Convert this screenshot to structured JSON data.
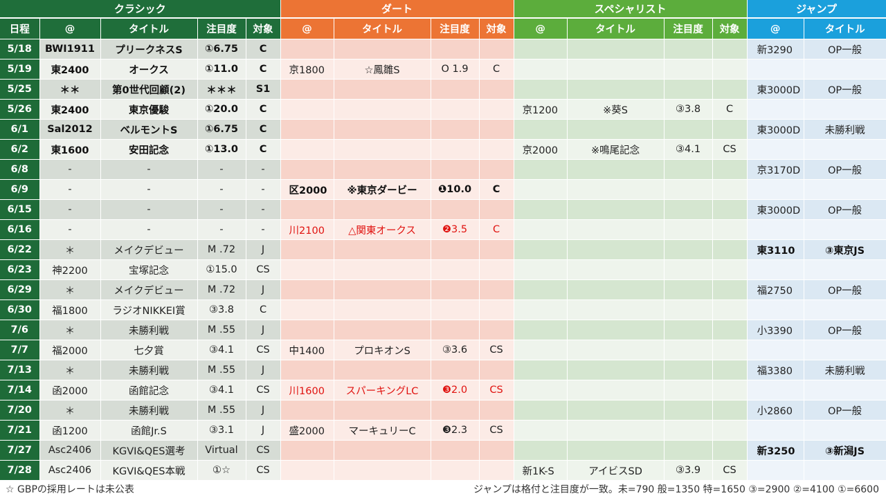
{
  "groups": {
    "classic": "クラシック",
    "dirt": "ダート",
    "specialist": "スペシャリスト",
    "jump": "ジャンプ"
  },
  "headers": {
    "date": "日程",
    "classic": [
      "@",
      "タイトル",
      "注目度",
      "対象"
    ],
    "dirt": [
      "@",
      "タイトル",
      "注目度",
      "対象"
    ],
    "specialist": [
      "@",
      "タイトル",
      "注目度",
      "対象"
    ],
    "jump": [
      "@",
      "タイトル"
    ]
  },
  "rows": [
    {
      "date": "5/18",
      "classic": [
        "BWI1911",
        "プリークネスS",
        "①6.75",
        "C"
      ],
      "classic_bold": true,
      "dirt": [
        "",
        "",
        "",
        ""
      ],
      "specialist": [
        "",
        "",
        "",
        ""
      ],
      "jump": [
        "新3290",
        "OP一般"
      ]
    },
    {
      "date": "5/19",
      "classic": [
        "東2400",
        "オークス",
        "①11.0",
        "C"
      ],
      "classic_bold": true,
      "dirt": [
        "京1800",
        "☆鳳雛S",
        "O 1.9",
        "C"
      ],
      "specialist": [
        "",
        "",
        "",
        ""
      ],
      "jump": [
        "",
        ""
      ]
    },
    {
      "date": "5/25",
      "classic": [
        "＊＊",
        "第0世代回顧(2)",
        "＊＊＊",
        "S1"
      ],
      "classic_bold": true,
      "dirt": [
        "",
        "",
        "",
        ""
      ],
      "specialist": [
        "",
        "",
        "",
        ""
      ],
      "jump": [
        "東3000D",
        "OP一般"
      ]
    },
    {
      "date": "5/26",
      "classic": [
        "東2400",
        "東京優駿",
        "①20.0",
        "C"
      ],
      "classic_bold": true,
      "dirt": [
        "",
        "",
        "",
        ""
      ],
      "specialist": [
        "京1200",
        "※葵S",
        "③3.8",
        "C"
      ],
      "jump": [
        "",
        ""
      ]
    },
    {
      "date": "6/1",
      "classic": [
        "Sal2012",
        "ベルモントS",
        "①6.75",
        "C"
      ],
      "classic_bold": true,
      "dirt": [
        "",
        "",
        "",
        ""
      ],
      "specialist": [
        "",
        "",
        "",
        ""
      ],
      "jump": [
        "東3000D",
        "未勝利戦"
      ]
    },
    {
      "date": "6/2",
      "classic": [
        "東1600",
        "安田記念",
        "①13.0",
        "C"
      ],
      "classic_bold": true,
      "dirt": [
        "",
        "",
        "",
        ""
      ],
      "specialist": [
        "京2000",
        "※鳴尾記念",
        "③4.1",
        "CS"
      ],
      "jump": [
        "",
        ""
      ]
    },
    {
      "date": "6/8",
      "classic": [
        "-",
        "-",
        "-",
        "-"
      ],
      "dirt": [
        "",
        "",
        "",
        ""
      ],
      "specialist": [
        "",
        "",
        "",
        ""
      ],
      "jump": [
        "京3170D",
        "OP一般"
      ]
    },
    {
      "date": "6/9",
      "classic": [
        "-",
        "-",
        "-",
        "-"
      ],
      "dirt": [
        "区2000",
        "※東京ダービー",
        "❶10.0",
        "C"
      ],
      "dirt_bold": true,
      "specialist": [
        "",
        "",
        "",
        ""
      ],
      "jump": [
        "",
        ""
      ]
    },
    {
      "date": "6/15",
      "classic": [
        "-",
        "-",
        "-",
        "-"
      ],
      "dirt": [
        "",
        "",
        "",
        ""
      ],
      "specialist": [
        "",
        "",
        "",
        ""
      ],
      "jump": [
        "東3000D",
        "OP一般"
      ]
    },
    {
      "date": "6/16",
      "classic": [
        "-",
        "-",
        "-",
        "-"
      ],
      "dirt": [
        "川2100",
        "△関東オークス",
        "❷3.5",
        "C"
      ],
      "dirt_red": true,
      "specialist": [
        "",
        "",
        "",
        ""
      ],
      "jump": [
        "",
        ""
      ]
    },
    {
      "date": "6/22",
      "classic": [
        "＊",
        "メイクデビュー",
        "M .72",
        "J"
      ],
      "dirt": [
        "",
        "",
        "",
        ""
      ],
      "specialist": [
        "",
        "",
        "",
        ""
      ],
      "jump": [
        "東3110",
        "③東京JS"
      ],
      "jump_bold": true
    },
    {
      "date": "6/23",
      "classic": [
        "神2200",
        "宝塚記念",
        "①15.0",
        "CS"
      ],
      "dirt": [
        "",
        "",
        "",
        ""
      ],
      "specialist": [
        "",
        "",
        "",
        ""
      ],
      "jump": [
        "",
        ""
      ]
    },
    {
      "date": "6/29",
      "classic": [
        "＊",
        "メイクデビュー",
        "M .72",
        "J"
      ],
      "dirt": [
        "",
        "",
        "",
        ""
      ],
      "specialist": [
        "",
        "",
        "",
        ""
      ],
      "jump": [
        "福2750",
        "OP一般"
      ]
    },
    {
      "date": "6/30",
      "classic": [
        "福1800",
        "ラジオNIKKEI賞",
        "③3.8",
        "C"
      ],
      "dirt": [
        "",
        "",
        "",
        ""
      ],
      "specialist": [
        "",
        "",
        "",
        ""
      ],
      "jump": [
        "",
        ""
      ]
    },
    {
      "date": "7/6",
      "classic": [
        "＊",
        "未勝利戦",
        "M .55",
        "J"
      ],
      "dirt": [
        "",
        "",
        "",
        ""
      ],
      "specialist": [
        "",
        "",
        "",
        ""
      ],
      "jump": [
        "小3390",
        "OP一般"
      ]
    },
    {
      "date": "7/7",
      "classic": [
        "福2000",
        "七夕賞",
        "③4.1",
        "CS"
      ],
      "dirt": [
        "中1400",
        "プロキオンS",
        "③3.6",
        "CS"
      ],
      "specialist": [
        "",
        "",
        "",
        ""
      ],
      "jump": [
        "",
        ""
      ]
    },
    {
      "date": "7/13",
      "classic": [
        "＊",
        "未勝利戦",
        "M .55",
        "J"
      ],
      "dirt": [
        "",
        "",
        "",
        ""
      ],
      "specialist": [
        "",
        "",
        "",
        ""
      ],
      "jump": [
        "福3380",
        "未勝利戦"
      ]
    },
    {
      "date": "7/14",
      "classic": [
        "函2000",
        "函館記念",
        "③4.1",
        "CS"
      ],
      "dirt": [
        "川1600",
        "スパーキングLC",
        "❸2.0",
        "CS"
      ],
      "dirt_red": true,
      "specialist": [
        "",
        "",
        "",
        ""
      ],
      "jump": [
        "",
        ""
      ]
    },
    {
      "date": "7/20",
      "classic": [
        "＊",
        "未勝利戦",
        "M .55",
        "J"
      ],
      "dirt": [
        "",
        "",
        "",
        ""
      ],
      "specialist": [
        "",
        "",
        "",
        ""
      ],
      "jump": [
        "小2860",
        "OP一般"
      ]
    },
    {
      "date": "7/21",
      "classic": [
        "函1200",
        "函館Jr.S",
        "③3.1",
        "J"
      ],
      "dirt": [
        "盛2000",
        "マーキュリーC",
        "❸2.3",
        "CS"
      ],
      "specialist": [
        "",
        "",
        "",
        ""
      ],
      "jump": [
        "",
        ""
      ]
    },
    {
      "date": "7/27",
      "classic": [
        "Asc2406",
        "KGVI&QES選考",
        "Virtual",
        "CS"
      ],
      "dirt": [
        "",
        "",
        "",
        ""
      ],
      "specialist": [
        "",
        "",
        "",
        ""
      ],
      "jump": [
        "新3250",
        "③新潟JS"
      ],
      "jump_bold": true
    },
    {
      "date": "7/28",
      "classic": [
        "Asc2406",
        "KGVI&QES本戦",
        "①☆",
        "CS"
      ],
      "dirt": [
        "",
        "",
        "",
        ""
      ],
      "specialist": [
        "新1K-S",
        "アイビスSD",
        "③3.9",
        "CS"
      ],
      "jump": [
        "",
        ""
      ]
    }
  ],
  "footer": {
    "left": "☆ GBPの採用レートは未公表",
    "right": "ジャンプは格付と注目度が一致。未=790 般=1350 特=1650 ③=2900 ②=4100 ①=6600"
  }
}
